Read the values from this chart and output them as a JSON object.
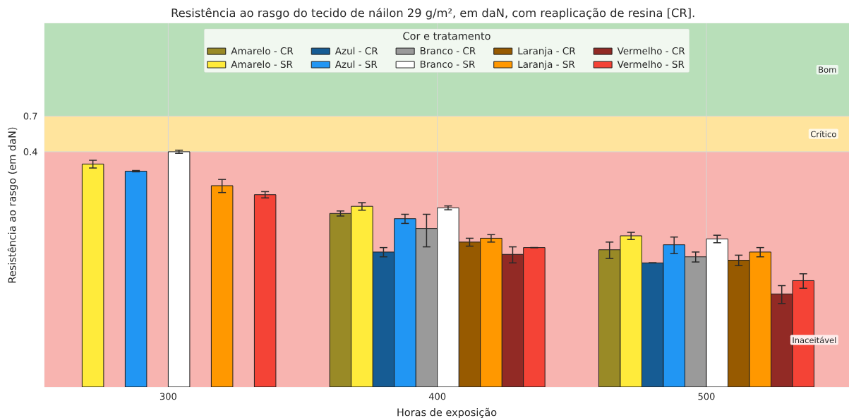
{
  "chart_data": {
    "type": "bar",
    "title": "Resistência ao rasgo do tecido de náilon 29 g/m², em daN, com reaplicação de resina [CR].",
    "xlabel": "Horas de exposição",
    "ylabel": "Resistência ao rasgo (em daN)",
    "legend_title": "Cor e tratamento",
    "categories": [
      "300",
      "400",
      "500"
    ],
    "series": [
      {
        "name": "Amarelo - CR",
        "color": "#998a26",
        "values": [
          null,
          0.152,
          0.086
        ],
        "errors": [
          null,
          0.006,
          0.011
        ]
      },
      {
        "name": "Amarelo - SR",
        "color": "#ffeb3b",
        "values": [
          0.33,
          0.17,
          0.107
        ],
        "errors": [
          0.02,
          0.01,
          0.006
        ]
      },
      {
        "name": "Azul - CR",
        "color": "#165c94",
        "values": [
          null,
          0.083,
          0.07
        ],
        "errors": [
          null,
          0.006,
          0
        ]
      },
      {
        "name": "Azul - SR",
        "color": "#2196f3",
        "values": [
          0.295,
          0.14,
          0.093
        ],
        "errors": [
          0.003,
          0.01,
          0.012
        ]
      },
      {
        "name": "Branco - CR",
        "color": "#9a9a9a",
        "values": [
          null,
          0.12,
          0.077
        ],
        "errors": [
          null,
          0.03,
          0.006
        ]
      },
      {
        "name": "Branco - SR",
        "color": "#ffffff",
        "values": [
          0.4,
          0.166,
          0.102
        ],
        "errors": [
          0.01,
          0.005,
          0.006
        ]
      },
      {
        "name": "Laranja - CR",
        "color": "#975a00",
        "values": [
          null,
          0.097,
          0.073
        ],
        "errors": [
          null,
          0.006,
          0.006
        ]
      },
      {
        "name": "Laranja - SR",
        "color": "#ff9800",
        "values": [
          0.235,
          0.103,
          0.083
        ],
        "errors": [
          0.024,
          0.006,
          0.006
        ]
      },
      {
        "name": "Vermelho - CR",
        "color": "#922a25",
        "values": [
          null,
          0.08,
          0.043
        ],
        "errors": [
          null,
          0.01,
          0.006
        ]
      },
      {
        "name": "Vermelho - SR",
        "color": "#f44336",
        "values": [
          0.204,
          0.089,
          0.053
        ],
        "errors": [
          0.01,
          0,
          0.006
        ]
      }
    ],
    "log": "y",
    "ylim": [
      0.01,
      3
    ],
    "yticks": [
      0.4,
      0.7
    ],
    "grid": true,
    "legend": "top",
    "bands": [
      {
        "axis": "y",
        "from": 0.01,
        "to": 0.4,
        "label": "Inaceitável",
        "color": "#f8b4b0"
      },
      {
        "axis": "y",
        "from": 0.4,
        "to": 0.7,
        "label": "Crítico",
        "color": "#ffe49d"
      },
      {
        "axis": "y",
        "from": 0.7,
        "to": 3,
        "label": "Bom",
        "color": "#b8dfb9"
      }
    ]
  }
}
